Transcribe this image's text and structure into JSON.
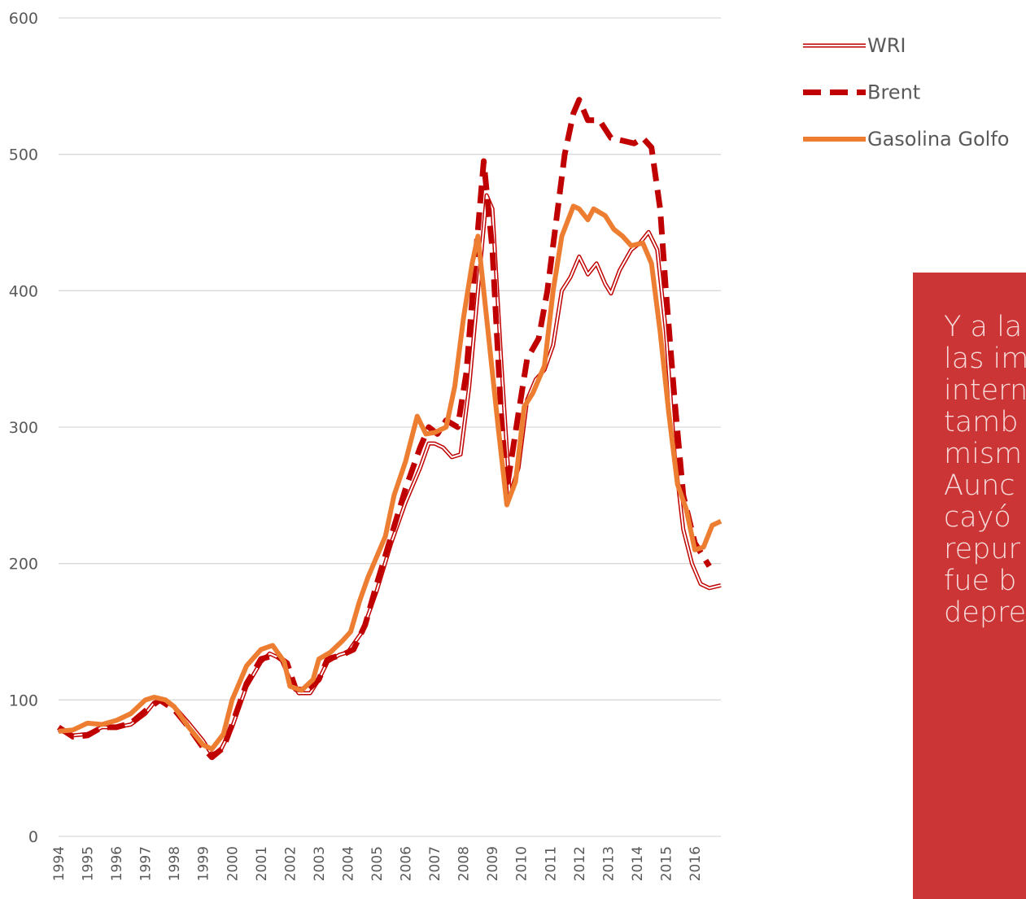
{
  "chart_data": {
    "type": "line",
    "xlim": [
      1994,
      2016.9
    ],
    "xticks": [
      1994,
      1995,
      1996,
      1997,
      1998,
      1999,
      2000,
      2001,
      2002,
      2003,
      2004,
      2005,
      2006,
      2007,
      2008,
      2009,
      2010,
      2011,
      2012,
      2013,
      2014,
      2015,
      2016
    ],
    "ylim": [
      0,
      600
    ],
    "yticks": [
      0,
      100,
      200,
      300,
      400,
      500,
      600
    ],
    "grid": true,
    "legend": "right",
    "series": [
      {
        "name": "WRI",
        "color": "#c00000",
        "style": "double",
        "x": [
          1994.0,
          1994.5,
          1995.0,
          1995.5,
          1996.0,
          1996.5,
          1997.0,
          1997.3,
          1997.6,
          1998.0,
          1998.5,
          1999.0,
          1999.3,
          1999.6,
          2000.0,
          2000.5,
          2001.0,
          2001.3,
          2001.7,
          2002.0,
          2002.3,
          2002.7,
          2003.0,
          2003.3,
          2003.7,
          2004.0,
          2004.5,
          2005.0,
          2005.5,
          2006.0,
          2006.5,
          2006.8,
          2007.0,
          2007.3,
          2007.6,
          2007.9,
          2008.2,
          2008.5,
          2008.8,
          2009.0,
          2009.3,
          2009.6,
          2009.9,
          2010.2,
          2010.5,
          2010.8,
          2011.1,
          2011.4,
          2011.7,
          2012.0,
          2012.3,
          2012.6,
          2012.9,
          2013.1,
          2013.4,
          2013.8,
          2014.1,
          2014.4,
          2014.7,
          2015.0,
          2015.3,
          2015.6,
          2015.9,
          2016.2,
          2016.5,
          2016.9
        ],
        "values": [
          78,
          74,
          75,
          80,
          80,
          82,
          90,
          98,
          100,
          95,
          83,
          70,
          60,
          63,
          80,
          110,
          128,
          134,
          130,
          115,
          105,
          105,
          115,
          128,
          133,
          135,
          150,
          180,
          215,
          245,
          270,
          288,
          288,
          285,
          278,
          280,
          330,
          400,
          470,
          460,
          350,
          250,
          270,
          320,
          335,
          342,
          360,
          400,
          410,
          425,
          412,
          420,
          405,
          398,
          415,
          430,
          435,
          443,
          430,
          370,
          280,
          225,
          200,
          185,
          182,
          184
        ]
      },
      {
        "name": "Brent",
        "color": "#c00000",
        "style": "dashed",
        "x": [
          1994.0,
          1994.5,
          1995.0,
          1995.5,
          1996.0,
          1996.5,
          1997.0,
          1997.5,
          1998.0,
          1998.5,
          1999.0,
          1999.3,
          1999.7,
          2000.0,
          2000.5,
          2001.0,
          2001.5,
          2001.9,
          2002.2,
          2002.6,
          2003.0,
          2003.3,
          2003.8,
          2004.2,
          2004.6,
          2005.0,
          2005.5,
          2006.0,
          2006.5,
          2006.8,
          2007.1,
          2007.4,
          2007.8,
          2008.1,
          2008.4,
          2008.7,
          2009.0,
          2009.3,
          2009.5,
          2009.9,
          2010.2,
          2010.6,
          2010.9,
          2011.2,
          2011.5,
          2011.8,
          2012.0,
          2012.3,
          2012.7,
          2013.1,
          2013.5,
          2013.9,
          2014.2,
          2014.5,
          2014.8,
          2015.0,
          2015.3,
          2015.6,
          2016.0,
          2016.5
        ],
        "values": [
          80,
          73,
          74,
          80,
          80,
          83,
          92,
          100,
          93,
          80,
          65,
          58,
          65,
          82,
          112,
          130,
          133,
          127,
          108,
          107,
          115,
          130,
          133,
          137,
          155,
          185,
          220,
          255,
          285,
          300,
          295,
          305,
          300,
          340,
          420,
          495,
          430,
          310,
          255,
          310,
          350,
          365,
          400,
          450,
          500,
          530,
          540,
          525,
          525,
          512,
          510,
          508,
          512,
          505,
          460,
          400,
          320,
          250,
          215,
          198
        ]
      },
      {
        "name": "Gasolina Golfo",
        "color": "#ed7d31",
        "style": "solid",
        "x": [
          1994.0,
          1994.5,
          1995.0,
          1995.5,
          1996.0,
          1996.5,
          1997.0,
          1997.3,
          1997.7,
          1998.0,
          1998.5,
          1999.0,
          1999.3,
          1999.7,
          2000.0,
          2000.5,
          2001.0,
          2001.4,
          2001.8,
          2002.0,
          2002.4,
          2002.8,
          2003.0,
          2003.4,
          2003.8,
          2004.1,
          2004.4,
          2004.7,
          2005.0,
          2005.3,
          2005.6,
          2006.0,
          2006.4,
          2006.7,
          2007.0,
          2007.4,
          2007.7,
          2008.0,
          2008.3,
          2008.5,
          2008.8,
          2009.2,
          2009.5,
          2009.8,
          2010.1,
          2010.4,
          2010.8,
          2011.1,
          2011.4,
          2011.8,
          2012.0,
          2012.3,
          2012.5,
          2012.9,
          2013.2,
          2013.5,
          2013.8,
          2014.2,
          2014.5,
          2014.8,
          2015.1,
          2015.4,
          2015.7,
          2016.0,
          2016.3,
          2016.6,
          2016.9
        ],
        "values": [
          77,
          78,
          83,
          82,
          85,
          90,
          100,
          102,
          100,
          95,
          80,
          67,
          64,
          75,
          100,
          125,
          137,
          140,
          128,
          110,
          107,
          115,
          130,
          135,
          143,
          150,
          172,
          190,
          205,
          220,
          250,
          275,
          308,
          295,
          296,
          300,
          330,
          380,
          420,
          440,
          380,
          300,
          243,
          260,
          315,
          325,
          345,
          400,
          440,
          462,
          460,
          452,
          460,
          455,
          445,
          440,
          433,
          435,
          420,
          370,
          310,
          258,
          240,
          210,
          212,
          228,
          231
        ]
      }
    ],
    "annotation": [
      "Y a la",
      "las im",
      "intern",
      "tamb",
      "mism",
      "Aunc",
      "cayó",
      "repur",
      "fue b",
      "depre"
    ]
  }
}
